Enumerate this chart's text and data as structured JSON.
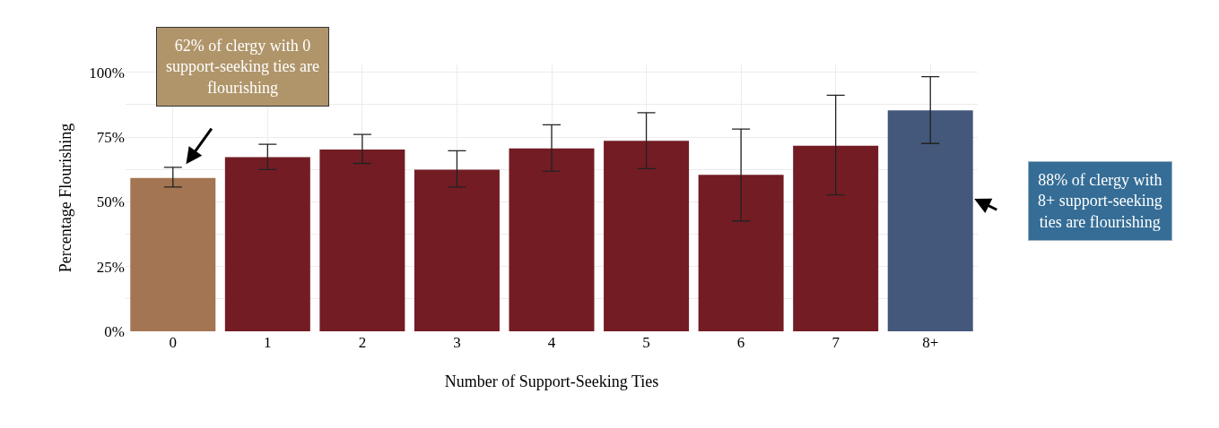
{
  "chart_data": {
    "type": "bar",
    "xlabel": "Number of Support-Seeking Ties",
    "ylabel": "Percentage Flourishing",
    "categories": [
      "0",
      "1",
      "2",
      "3",
      "4",
      "5",
      "6",
      "7",
      "8+"
    ],
    "values": [
      59.2,
      67.2,
      70.2,
      62.4,
      70.6,
      73.5,
      60.4,
      71.6,
      85.3
    ],
    "colors": [
      "#a47552",
      "#731c24",
      "#731c24",
      "#731c24",
      "#731c24",
      "#731c24",
      "#731c24",
      "#731c24",
      "#43587a"
    ],
    "errors": [
      [
        55.7,
        63.3
      ],
      [
        62.4,
        72.2
      ],
      [
        64.8,
        76.0
      ],
      [
        55.7,
        69.7
      ],
      [
        61.8,
        79.7
      ],
      [
        62.8,
        84.4
      ],
      [
        42.6,
        78.1
      ],
      [
        52.7,
        91.1
      ],
      [
        72.5,
        98.3
      ]
    ],
    "ylim": [
      0,
      103
    ],
    "yticks": [
      {
        "value": 0,
        "label": "0%"
      },
      {
        "value": 12.5,
        "label": null
      },
      {
        "value": 25,
        "label": "25%"
      },
      {
        "value": 37.5,
        "label": null
      },
      {
        "value": 50,
        "label": "50%"
      },
      {
        "value": 62.5,
        "label": null
      },
      {
        "value": 75,
        "label": "75%"
      },
      {
        "value": 87.5,
        "label": null
      },
      {
        "value": 100,
        "label": "100%"
      }
    ],
    "grid": true,
    "annotations": [
      "62% of clergy with 0\nsupport-seeking ties are\nflourishing",
      "88% of clergy with\n8+ support-seeking\nties are flourishing"
    ]
  }
}
